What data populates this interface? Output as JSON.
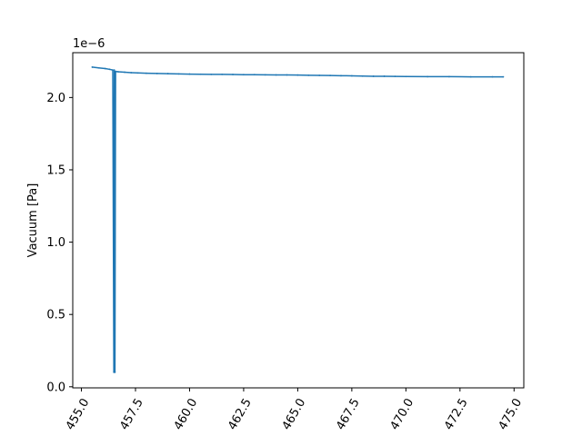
{
  "chart_data": {
    "type": "line",
    "title": "",
    "xlabel": "",
    "ylabel": "Vacuum [Pa]",
    "y_offset_label": "1e−6",
    "xlim": [
      454.6,
      475.45
    ],
    "ylim": [
      -0.0075,
      2.31
    ],
    "x_ticks": [
      "455.0",
      "457.5",
      "460.0",
      "462.5",
      "465.0",
      "467.5",
      "470.0",
      "472.5",
      "475.0"
    ],
    "x_tick_values": [
      455.0,
      457.5,
      460.0,
      462.5,
      465.0,
      467.5,
      470.0,
      472.5,
      475.0
    ],
    "y_ticks": [
      "0.0",
      "0.5",
      "1.0",
      "1.5",
      "2.0"
    ],
    "y_tick_values": [
      0.0,
      0.5,
      1.0,
      1.5,
      2.0
    ],
    "x_tick_rotation": 60,
    "grid": false,
    "legend": "none",
    "color": "#1f77b4",
    "series": [
      {
        "x": [
          455.5,
          455.8,
          456.1,
          456.3,
          456.45,
          456.5,
          456.52,
          456.55,
          456.58,
          456.6,
          456.7,
          457.0,
          457.3,
          457.6,
          458.0,
          458.5,
          459.0,
          459.5,
          460.0,
          460.5,
          461.0,
          461.5,
          462.0,
          462.5,
          463.0,
          463.5,
          464.0,
          464.5,
          465.0,
          465.5,
          466.0,
          466.5,
          467.0,
          467.5,
          468.0,
          468.5,
          469.0,
          469.5,
          470.0,
          471.0,
          472.0,
          473.0,
          474.0,
          474.5
        ],
        "y": [
          2.21,
          2.205,
          2.2,
          2.195,
          2.19,
          0.1,
          2.19,
          0.1,
          2.18,
          2.18,
          2.178,
          2.175,
          2.172,
          2.17,
          2.168,
          2.166,
          2.165,
          2.163,
          2.162,
          2.161,
          2.16,
          2.16,
          2.159,
          2.158,
          2.158,
          2.157,
          2.156,
          2.156,
          2.155,
          2.154,
          2.153,
          2.152,
          2.151,
          2.15,
          2.148,
          2.147,
          2.147,
          2.146,
          2.145,
          2.144,
          2.144,
          2.143,
          2.143,
          2.143
        ]
      }
    ]
  }
}
